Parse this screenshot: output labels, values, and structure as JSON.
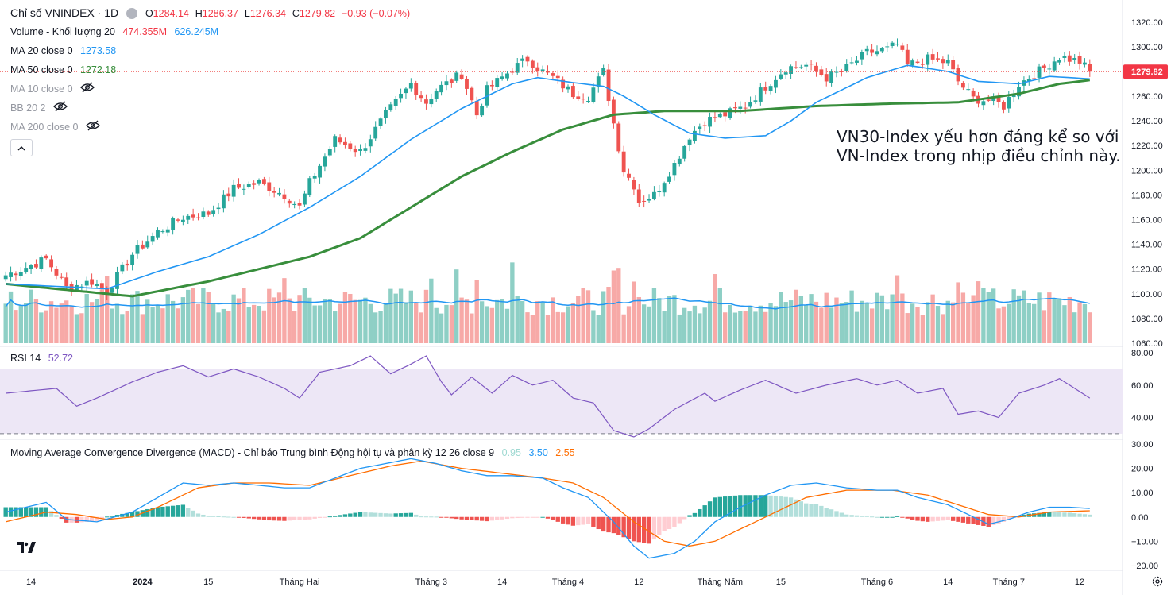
{
  "header": {
    "symbol_title": "Chỉ số VNINDEX · 1D",
    "ohlc": {
      "o_label": "O",
      "o": "1284.14",
      "h_label": "H",
      "h": "1286.37",
      "l_label": "L",
      "l": "1276.34",
      "c_label": "C",
      "c": "1279.82",
      "change": "−0.93 (−0.07%)"
    }
  },
  "indicators": {
    "volume": {
      "label": "Volume - Khối lượng 20",
      "v1": "474.355M",
      "v2": "626.245M"
    },
    "ma20": {
      "label": "MA 20 close 0",
      "value": "1273.58"
    },
    "ma50": {
      "label": "MA 50 close 0",
      "value": "1272.18"
    },
    "ma10": {
      "label": "MA 10 close 0"
    },
    "bb": {
      "label": "BB 20 2"
    },
    "ma200": {
      "label": "MA 200 close 0"
    }
  },
  "annotation": {
    "line1": "VN30-Index yếu hơn đáng kể so với",
    "line2": "VN-Index trong nhịp điều chỉnh này."
  },
  "rsi": {
    "label": "RSI 14",
    "value": "52.72"
  },
  "macd": {
    "label": "Moving Average Convergence Divergence (MACD) - Chỉ báo Trung bình Động hội tụ và phân kỳ 12 26 close 9",
    "hist": "0.95",
    "macd": "3.50",
    "signal": "2.55"
  },
  "colors": {
    "up": "#26a69a",
    "down": "#ef5350",
    "vol_up": "#8ecfc5",
    "vol_down": "#f7a9a7",
    "ma20": "#2196f3",
    "ma50": "#388e3c",
    "rsi": "#7e57c2",
    "rsi_band": "#ede7f6",
    "macd_line": "#2196f3",
    "signal_line": "#ff6d00",
    "hist_up_strong": "#26a69a",
    "hist_up_weak": "#b2dfdb",
    "hist_down_strong": "#ef5350",
    "hist_down_weak": "#ffcdd2",
    "last_price_badge": "#f23645"
  },
  "icons": [
    "eye-off-icon",
    "chevron-up-icon",
    "tradingview-logo-icon",
    "gear-icon"
  ],
  "chart_data": {
    "type": "candlestick",
    "price_axis": {
      "ticks": [
        "1320.00",
        "1300.00",
        "1280.00",
        "1260.00",
        "1240.00",
        "1220.00",
        "1200.00",
        "1180.00",
        "1160.00",
        "1140.00",
        "1120.00",
        "1100.00",
        "1080.00",
        "1060.00"
      ],
      "ylim": [
        1060,
        1325
      ],
      "last_price": "1279.82"
    },
    "rsi_axis": {
      "ticks": [
        "80.00",
        "60.00",
        "40.00"
      ],
      "ylim": [
        28,
        82
      ],
      "bands": [
        70,
        30
      ]
    },
    "macd_axis": {
      "ticks": [
        "30.00",
        "20.00",
        "10.00",
        "0.00",
        "−10.00",
        "−20.00"
      ],
      "ylim": [
        -22,
        31
      ]
    },
    "time_axis": {
      "labels": [
        "14",
        "2024",
        "15",
        "Tháng Hai",
        "Tháng 3",
        "14",
        "Tháng 4",
        "12",
        "Tháng Năm",
        "15",
        "Tháng 6",
        "14",
        "Tháng 7",
        "12"
      ]
    },
    "price_path_knots": [
      [
        0,
        1115
      ],
      [
        8,
        1128
      ],
      [
        12,
        1105
      ],
      [
        17,
        1110
      ],
      [
        20,
        1102
      ],
      [
        25,
        1132
      ],
      [
        30,
        1150
      ],
      [
        35,
        1162
      ],
      [
        40,
        1165
      ],
      [
        45,
        1185
      ],
      [
        50,
        1190
      ],
      [
        55,
        1180
      ],
      [
        58,
        1170
      ],
      [
        60,
        1190
      ],
      [
        65,
        1225
      ],
      [
        70,
        1215
      ],
      [
        75,
        1245
      ],
      [
        80,
        1270
      ],
      [
        83,
        1255
      ],
      [
        85,
        1265
      ],
      [
        90,
        1278
      ],
      [
        93,
        1245
      ],
      [
        95,
        1265
      ],
      [
        100,
        1282
      ],
      [
        103,
        1290
      ],
      [
        106,
        1280
      ],
      [
        108,
        1275
      ],
      [
        112,
        1262
      ],
      [
        115,
        1260
      ],
      [
        118,
        1280
      ],
      [
        120,
        1238
      ],
      [
        122,
        1200
      ],
      [
        124,
        1188
      ],
      [
        125,
        1175
      ],
      [
        128,
        1180
      ],
      [
        132,
        1205
      ],
      [
        135,
        1228
      ],
      [
        138,
        1240
      ],
      [
        142,
        1245
      ],
      [
        146,
        1252
      ],
      [
        150,
        1268
      ],
      [
        154,
        1283
      ],
      [
        158,
        1285
      ],
      [
        162,
        1275
      ],
      [
        165,
        1280
      ],
      [
        170,
        1295
      ],
      [
        174,
        1298
      ],
      [
        176,
        1302
      ],
      [
        178,
        1285
      ],
      [
        182,
        1290
      ],
      [
        186,
        1287
      ],
      [
        188,
        1272
      ],
      [
        191,
        1258
      ],
      [
        195,
        1256
      ],
      [
        197,
        1252
      ],
      [
        200,
        1270
      ],
      [
        205,
        1283
      ],
      [
        208,
        1292
      ],
      [
        212,
        1288
      ],
      [
        214,
        1280
      ]
    ],
    "ma20_knots": [
      [
        0,
        1108
      ],
      [
        20,
        1104
      ],
      [
        30,
        1118
      ],
      [
        40,
        1130
      ],
      [
        50,
        1148
      ],
      [
        60,
        1170
      ],
      [
        70,
        1195
      ],
      [
        80,
        1225
      ],
      [
        90,
        1250
      ],
      [
        100,
        1270
      ],
      [
        105,
        1275
      ],
      [
        112,
        1271
      ],
      [
        118,
        1268
      ],
      [
        122,
        1260
      ],
      [
        128,
        1245
      ],
      [
        135,
        1230
      ],
      [
        142,
        1226
      ],
      [
        150,
        1228
      ],
      [
        155,
        1240
      ],
      [
        160,
        1255
      ],
      [
        170,
        1275
      ],
      [
        178,
        1285
      ],
      [
        186,
        1280
      ],
      [
        192,
        1272
      ],
      [
        200,
        1270
      ],
      [
        206,
        1276
      ],
      [
        214,
        1274
      ]
    ],
    "ma50_knots": [
      [
        0,
        1108
      ],
      [
        25,
        1098
      ],
      [
        40,
        1110
      ],
      [
        60,
        1130
      ],
      [
        70,
        1145
      ],
      [
        80,
        1170
      ],
      [
        90,
        1195
      ],
      [
        100,
        1215
      ],
      [
        110,
        1233
      ],
      [
        120,
        1245
      ],
      [
        130,
        1248
      ],
      [
        145,
        1248
      ],
      [
        160,
        1252
      ],
      [
        175,
        1254
      ],
      [
        188,
        1255
      ],
      [
        200,
        1262
      ],
      [
        208,
        1270
      ],
      [
        214,
        1273
      ]
    ],
    "rsi_knots": [
      [
        0,
        55
      ],
      [
        10,
        58
      ],
      [
        14,
        47
      ],
      [
        18,
        52
      ],
      [
        25,
        62
      ],
      [
        30,
        68
      ],
      [
        35,
        72
      ],
      [
        40,
        65
      ],
      [
        45,
        70
      ],
      [
        50,
        65
      ],
      [
        55,
        58
      ],
      [
        58,
        52
      ],
      [
        62,
        68
      ],
      [
        68,
        72
      ],
      [
        72,
        78
      ],
      [
        76,
        67
      ],
      [
        80,
        73
      ],
      [
        83,
        78
      ],
      [
        86,
        62
      ],
      [
        88,
        54
      ],
      [
        92,
        65
      ],
      [
        96,
        55
      ],
      [
        100,
        66
      ],
      [
        104,
        60
      ],
      [
        108,
        63
      ],
      [
        112,
        52
      ],
      [
        116,
        49
      ],
      [
        120,
        32
      ],
      [
        124,
        28
      ],
      [
        127,
        33
      ],
      [
        132,
        45
      ],
      [
        138,
        55
      ],
      [
        140,
        50
      ],
      [
        145,
        57
      ],
      [
        150,
        63
      ],
      [
        156,
        55
      ],
      [
        162,
        60
      ],
      [
        168,
        64
      ],
      [
        172,
        60
      ],
      [
        176,
        63
      ],
      [
        180,
        55
      ],
      [
        185,
        58
      ],
      [
        188,
        42
      ],
      [
        192,
        44
      ],
      [
        196,
        40
      ],
      [
        200,
        55
      ],
      [
        205,
        60
      ],
      [
        208,
        64
      ],
      [
        214,
        52
      ]
    ],
    "macd_knots": [
      [
        0,
        2
      ],
      [
        8,
        6
      ],
      [
        12,
        -1
      ],
      [
        18,
        -2
      ],
      [
        25,
        2
      ],
      [
        30,
        8
      ],
      [
        35,
        14
      ],
      [
        40,
        13
      ],
      [
        45,
        14
      ],
      [
        50,
        13
      ],
      [
        55,
        12
      ],
      [
        60,
        12
      ],
      [
        65,
        16
      ],
      [
        70,
        20
      ],
      [
        75,
        22
      ],
      [
        80,
        24
      ],
      [
        85,
        22
      ],
      [
        90,
        19
      ],
      [
        95,
        17
      ],
      [
        100,
        17
      ],
      [
        106,
        16
      ],
      [
        110,
        12
      ],
      [
        115,
        8
      ],
      [
        120,
        -2
      ],
      [
        124,
        -12
      ],
      [
        127,
        -17
      ],
      [
        132,
        -15
      ],
      [
        136,
        -10
      ],
      [
        140,
        -2
      ],
      [
        145,
        4
      ],
      [
        150,
        9
      ],
      [
        155,
        13
      ],
      [
        160,
        14
      ],
      [
        166,
        12
      ],
      [
        172,
        11
      ],
      [
        176,
        11
      ],
      [
        180,
        8
      ],
      [
        186,
        5
      ],
      [
        190,
        1
      ],
      [
        194,
        -3
      ],
      [
        198,
        -1
      ],
      [
        202,
        2
      ],
      [
        206,
        4
      ],
      [
        210,
        4
      ],
      [
        214,
        3.5
      ]
    ],
    "signal_knots": [
      [
        0,
        -2
      ],
      [
        8,
        2
      ],
      [
        14,
        1
      ],
      [
        20,
        -1
      ],
      [
        25,
        0
      ],
      [
        30,
        4
      ],
      [
        38,
        12
      ],
      [
        45,
        14
      ],
      [
        52,
        14
      ],
      [
        60,
        13
      ],
      [
        68,
        17
      ],
      [
        76,
        21
      ],
      [
        82,
        23
      ],
      [
        90,
        20
      ],
      [
        98,
        18
      ],
      [
        106,
        16
      ],
      [
        112,
        14
      ],
      [
        118,
        8
      ],
      [
        124,
        -2
      ],
      [
        130,
        -10
      ],
      [
        135,
        -12
      ],
      [
        140,
        -10
      ],
      [
        146,
        -4
      ],
      [
        152,
        2
      ],
      [
        158,
        8
      ],
      [
        166,
        11
      ],
      [
        175,
        11
      ],
      [
        182,
        9
      ],
      [
        188,
        5
      ],
      [
        194,
        1
      ],
      [
        200,
        0
      ],
      [
        206,
        2
      ],
      [
        214,
        2.55
      ]
    ],
    "volume_note": "bars shown in millions on price pane; MA line of volume overlaid"
  }
}
